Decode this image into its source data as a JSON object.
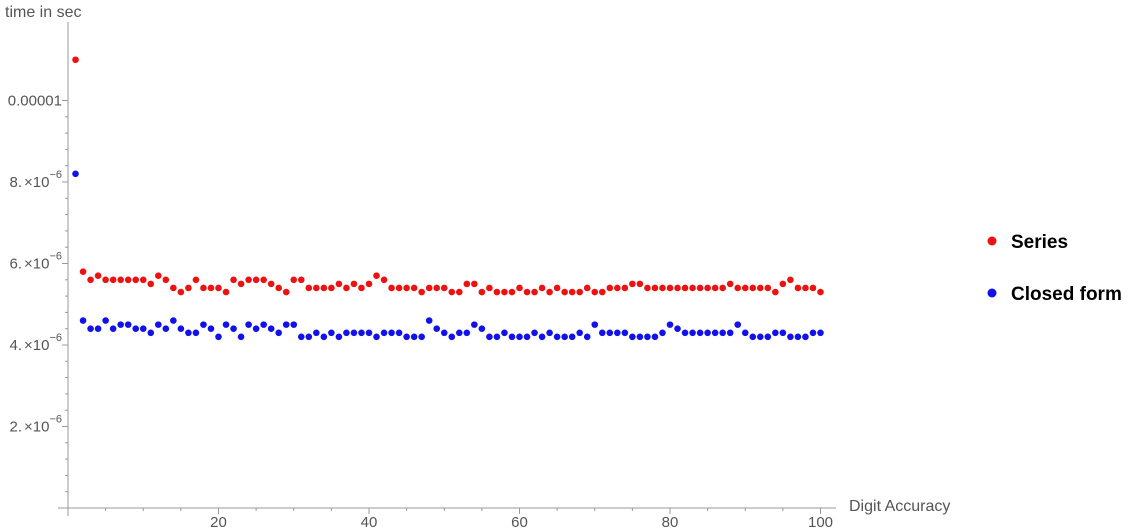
{
  "chart_data": {
    "type": "scatter",
    "xlabel": "Digit Accuracy",
    "ylabel": "time in sec",
    "xlim": [
      0,
      100
    ],
    "ylim": [
      0,
      1.17e-05
    ],
    "x_ticks": [
      {
        "value": 20,
        "label": "20"
      },
      {
        "value": 40,
        "label": "40"
      },
      {
        "value": 60,
        "label": "60"
      },
      {
        "value": 80,
        "label": "80"
      },
      {
        "value": 100,
        "label": "100"
      }
    ],
    "y_ticks": [
      {
        "value": 2e-06,
        "mantissa": "2.",
        "base": "×10",
        "exp": "−6"
      },
      {
        "value": 4e-06,
        "mantissa": "4.",
        "base": "×10",
        "exp": "−6"
      },
      {
        "value": 6e-06,
        "mantissa": "6.",
        "base": "×10",
        "exp": "−6"
      },
      {
        "value": 8e-06,
        "mantissa": "8.",
        "base": "×10",
        "exp": "−6"
      },
      {
        "value": 1e-05,
        "plain": "0.00001"
      }
    ],
    "grid": false,
    "legend_position": "right",
    "series": [
      {
        "name": "Series",
        "color": "#ee1111",
        "x": [
          1,
          2,
          3,
          4,
          5,
          6,
          7,
          8,
          9,
          10,
          11,
          12,
          13,
          14,
          15,
          16,
          17,
          18,
          19,
          20,
          21,
          22,
          23,
          24,
          25,
          26,
          27,
          28,
          29,
          30,
          31,
          32,
          33,
          34,
          35,
          36,
          37,
          38,
          39,
          40,
          41,
          42,
          43,
          44,
          45,
          46,
          47,
          48,
          49,
          50,
          51,
          52,
          53,
          54,
          55,
          56,
          57,
          58,
          59,
          60,
          61,
          62,
          63,
          64,
          65,
          66,
          67,
          68,
          69,
          70,
          71,
          72,
          73,
          74,
          75,
          76,
          77,
          78,
          79,
          80,
          81,
          82,
          83,
          84,
          85,
          86,
          87,
          88,
          89,
          90,
          91,
          92,
          93,
          94,
          95,
          96,
          97,
          98,
          99,
          100
        ],
        "y": [
          1.1e-05,
          5.8e-06,
          5.6e-06,
          5.7e-06,
          5.6e-06,
          5.6e-06,
          5.6e-06,
          5.6e-06,
          5.6e-06,
          5.6e-06,
          5.5e-06,
          5.7e-06,
          5.6e-06,
          5.4e-06,
          5.3e-06,
          5.4e-06,
          5.6e-06,
          5.4e-06,
          5.4e-06,
          5.4e-06,
          5.3e-06,
          5.6e-06,
          5.5e-06,
          5.6e-06,
          5.6e-06,
          5.6e-06,
          5.5e-06,
          5.4e-06,
          5.3e-06,
          5.6e-06,
          5.6e-06,
          5.4e-06,
          5.4e-06,
          5.4e-06,
          5.4e-06,
          5.5e-06,
          5.4e-06,
          5.5e-06,
          5.4e-06,
          5.5e-06,
          5.7e-06,
          5.6e-06,
          5.4e-06,
          5.4e-06,
          5.4e-06,
          5.4e-06,
          5.3e-06,
          5.4e-06,
          5.4e-06,
          5.4e-06,
          5.3e-06,
          5.3e-06,
          5.5e-06,
          5.5e-06,
          5.3e-06,
          5.4e-06,
          5.3e-06,
          5.3e-06,
          5.3e-06,
          5.4e-06,
          5.3e-06,
          5.3e-06,
          5.4e-06,
          5.3e-06,
          5.4e-06,
          5.3e-06,
          5.3e-06,
          5.3e-06,
          5.4e-06,
          5.3e-06,
          5.3e-06,
          5.4e-06,
          5.4e-06,
          5.4e-06,
          5.5e-06,
          5.5e-06,
          5.4e-06,
          5.4e-06,
          5.4e-06,
          5.4e-06,
          5.4e-06,
          5.4e-06,
          5.4e-06,
          5.4e-06,
          5.4e-06,
          5.4e-06,
          5.4e-06,
          5.5e-06,
          5.4e-06,
          5.4e-06,
          5.4e-06,
          5.4e-06,
          5.4e-06,
          5.3e-06,
          5.5e-06,
          5.6e-06,
          5.4e-06,
          5.4e-06,
          5.4e-06,
          5.3e-06
        ]
      },
      {
        "name": "Closed form",
        "color": "#1111ee",
        "x": [
          1,
          2,
          3,
          4,
          5,
          6,
          7,
          8,
          9,
          10,
          11,
          12,
          13,
          14,
          15,
          16,
          17,
          18,
          19,
          20,
          21,
          22,
          23,
          24,
          25,
          26,
          27,
          28,
          29,
          30,
          31,
          32,
          33,
          34,
          35,
          36,
          37,
          38,
          39,
          40,
          41,
          42,
          43,
          44,
          45,
          46,
          47,
          48,
          49,
          50,
          51,
          52,
          53,
          54,
          55,
          56,
          57,
          58,
          59,
          60,
          61,
          62,
          63,
          64,
          65,
          66,
          67,
          68,
          69,
          70,
          71,
          72,
          73,
          74,
          75,
          76,
          77,
          78,
          79,
          80,
          81,
          82,
          83,
          84,
          85,
          86,
          87,
          88,
          89,
          90,
          91,
          92,
          93,
          94,
          95,
          96,
          97,
          98,
          99,
          100
        ],
        "y": [
          8.2e-06,
          4.6e-06,
          4.4e-06,
          4.4e-06,
          4.6e-06,
          4.4e-06,
          4.5e-06,
          4.5e-06,
          4.4e-06,
          4.4e-06,
          4.3e-06,
          4.5e-06,
          4.4e-06,
          4.6e-06,
          4.4e-06,
          4.3e-06,
          4.3e-06,
          4.5e-06,
          4.4e-06,
          4.2e-06,
          4.5e-06,
          4.4e-06,
          4.2e-06,
          4.5e-06,
          4.4e-06,
          4.5e-06,
          4.4e-06,
          4.3e-06,
          4.5e-06,
          4.5e-06,
          4.2e-06,
          4.2e-06,
          4.3e-06,
          4.2e-06,
          4.3e-06,
          4.2e-06,
          4.3e-06,
          4.3e-06,
          4.3e-06,
          4.3e-06,
          4.2e-06,
          4.3e-06,
          4.3e-06,
          4.3e-06,
          4.2e-06,
          4.2e-06,
          4.2e-06,
          4.6e-06,
          4.4e-06,
          4.3e-06,
          4.2e-06,
          4.3e-06,
          4.3e-06,
          4.5e-06,
          4.4e-06,
          4.2e-06,
          4.2e-06,
          4.3e-06,
          4.2e-06,
          4.2e-06,
          4.2e-06,
          4.3e-06,
          4.2e-06,
          4.3e-06,
          4.2e-06,
          4.2e-06,
          4.2e-06,
          4.3e-06,
          4.2e-06,
          4.5e-06,
          4.3e-06,
          4.3e-06,
          4.3e-06,
          4.3e-06,
          4.2e-06,
          4.2e-06,
          4.2e-06,
          4.2e-06,
          4.3e-06,
          4.5e-06,
          4.4e-06,
          4.3e-06,
          4.3e-06,
          4.3e-06,
          4.3e-06,
          4.3e-06,
          4.3e-06,
          4.3e-06,
          4.5e-06,
          4.3e-06,
          4.2e-06,
          4.2e-06,
          4.2e-06,
          4.3e-06,
          4.3e-06,
          4.2e-06,
          4.2e-06,
          4.2e-06,
          4.3e-06,
          4.3e-06
        ]
      }
    ]
  }
}
